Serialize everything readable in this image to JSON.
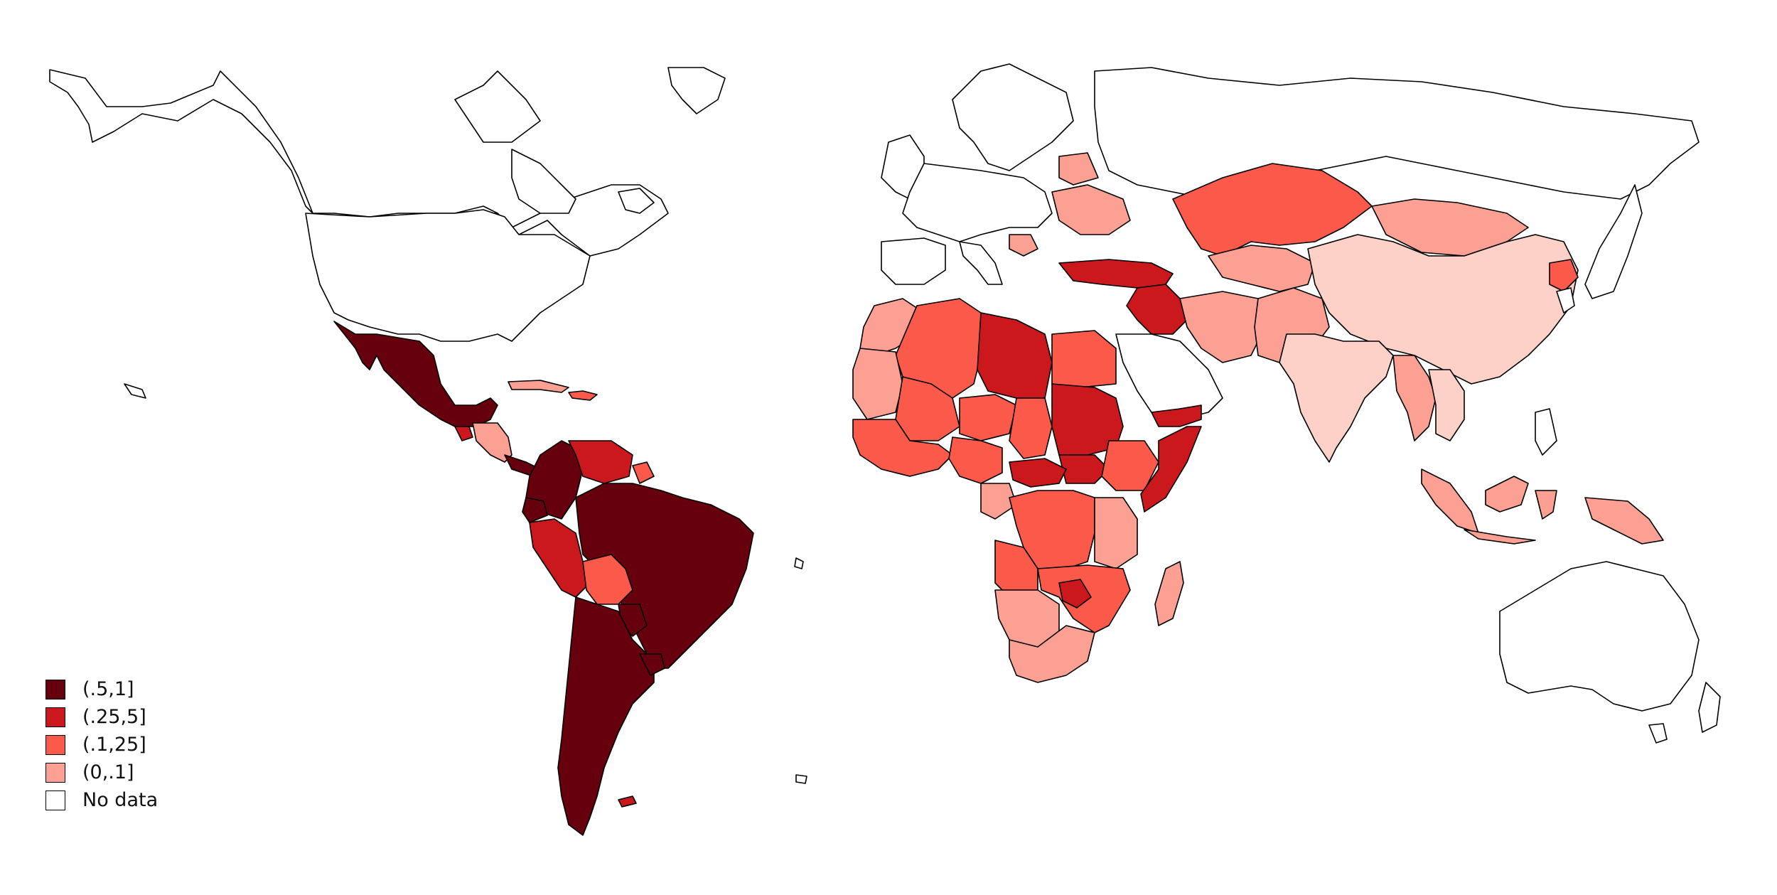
{
  "legend": {
    "items": [
      {
        "label": "(.5,1]",
        "color": "#67000d"
      },
      {
        "label": "(.25,5]",
        "color": "#cb181d"
      },
      {
        "label": "(.1,25]",
        "color": "#fb5a4a"
      },
      {
        "label": "(0,.1]",
        "color": "#fca093"
      },
      {
        "label": "No data",
        "color": "#ffffff"
      }
    ]
  },
  "colors": {
    "bin_5_1": "#67000d",
    "bin_25_5": "#cb181d",
    "bin_1_25": "#fb5a4a",
    "bin_0_1": "#fca093",
    "bin_low": "#fdd0c8",
    "no_data": "#ffffff"
  }
}
